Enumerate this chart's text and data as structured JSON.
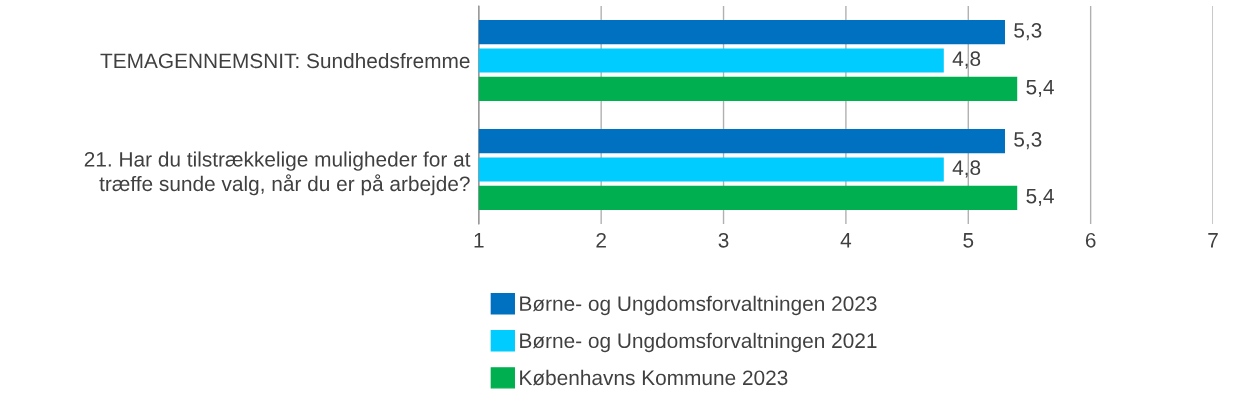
{
  "chart_data": {
    "type": "bar",
    "orientation": "horizontal",
    "categories": [
      "TEMAGENNEMSNIT: Sundhedsfremme",
      "21. Har du tilstrækkelige muligheder for at\ntræffe sunde valg, når du er på arbejde?"
    ],
    "series": [
      {
        "name": "Børne- og Ungdomsforvaltningen 2023",
        "color": "#0070c0",
        "values": [
          5.3,
          5.3
        ],
        "value_labels": [
          "5,3",
          "5,3"
        ]
      },
      {
        "name": "Børne- og Ungdomsforvaltningen 2021",
        "color": "#00ccff",
        "values": [
          4.8,
          4.8
        ],
        "value_labels": [
          "4,8",
          "4,8"
        ]
      },
      {
        "name": "Københavns Kommune 2023",
        "color": "#00b050",
        "values": [
          5.4,
          5.4
        ],
        "value_labels": [
          "5,4",
          "5,4"
        ]
      }
    ],
    "xlim": [
      1,
      7
    ],
    "xticks": [
      1,
      2,
      3,
      4,
      5,
      6,
      7
    ],
    "grid": "x",
    "legend": "bottom"
  }
}
